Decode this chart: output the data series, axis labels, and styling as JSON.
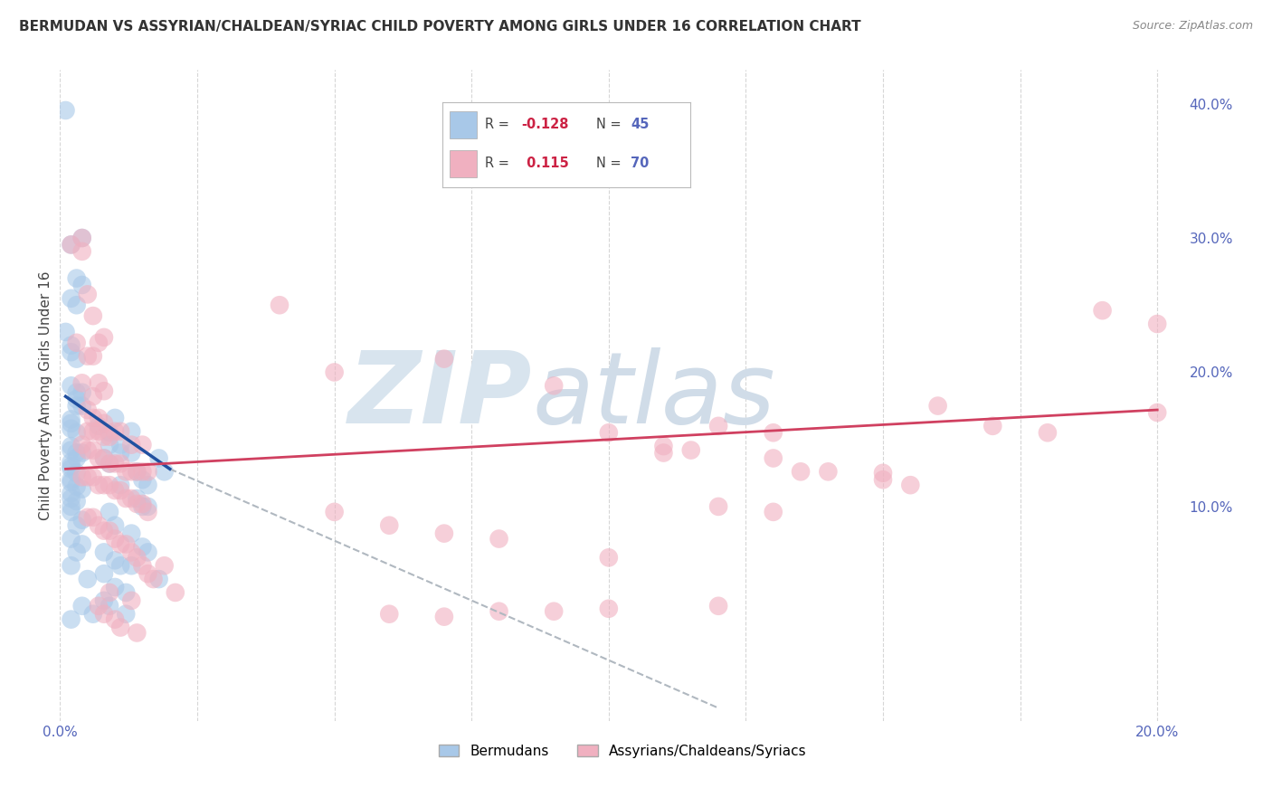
{
  "title": "BERMUDAN VS ASSYRIAN/CHALDEAN/SYRIAC CHILD POVERTY AMONG GIRLS UNDER 16 CORRELATION CHART",
  "source": "Source: ZipAtlas.com",
  "ylabel": "Child Poverty Among Girls Under 16",
  "xlim": [
    0.0,
    0.205
  ],
  "ylim": [
    -0.06,
    0.425
  ],
  "right_yticks": [
    0.1,
    0.2,
    0.3,
    0.4
  ],
  "right_yticklabels": [
    "10.0%",
    "20.0%",
    "30.0%",
    "40.0%"
  ],
  "xticks": [
    0.0,
    0.025,
    0.05,
    0.075,
    0.1,
    0.125,
    0.15,
    0.175,
    0.2
  ],
  "xticklabels": [
    "0.0%",
    "",
    "",
    "",
    "",
    "",
    "",
    "",
    "20.0%"
  ],
  "grid_color": "#cccccc",
  "background_color": "#ffffff",
  "blue_color": "#a8c8e8",
  "pink_color": "#f0b0c0",
  "blue_line_color": "#2050a0",
  "pink_line_color": "#d04060",
  "blue_dots": [
    [
      0.001,
      0.395
    ],
    [
      0.002,
      0.295
    ],
    [
      0.004,
      0.3
    ],
    [
      0.003,
      0.27
    ],
    [
      0.004,
      0.265
    ],
    [
      0.002,
      0.255
    ],
    [
      0.003,
      0.25
    ],
    [
      0.001,
      0.23
    ],
    [
      0.002,
      0.22
    ],
    [
      0.002,
      0.215
    ],
    [
      0.003,
      0.21
    ],
    [
      0.002,
      0.19
    ],
    [
      0.003,
      0.185
    ],
    [
      0.004,
      0.185
    ],
    [
      0.003,
      0.18
    ],
    [
      0.003,
      0.175
    ],
    [
      0.004,
      0.175
    ],
    [
      0.002,
      0.165
    ],
    [
      0.002,
      0.162
    ],
    [
      0.002,
      0.158
    ],
    [
      0.003,
      0.155
    ],
    [
      0.002,
      0.145
    ],
    [
      0.002,
      0.142
    ],
    [
      0.003,
      0.14
    ],
    [
      0.004,
      0.14
    ],
    [
      0.003,
      0.136
    ],
    [
      0.002,
      0.133
    ],
    [
      0.002,
      0.13
    ],
    [
      0.002,
      0.128
    ],
    [
      0.003,
      0.125
    ],
    [
      0.002,
      0.12
    ],
    [
      0.002,
      0.118
    ],
    [
      0.003,
      0.115
    ],
    [
      0.004,
      0.113
    ],
    [
      0.002,
      0.11
    ],
    [
      0.002,
      0.106
    ],
    [
      0.003,
      0.104
    ],
    [
      0.002,
      0.1
    ],
    [
      0.002,
      0.096
    ],
    [
      0.004,
      0.09
    ],
    [
      0.003,
      0.086
    ],
    [
      0.002,
      0.076
    ],
    [
      0.004,
      0.072
    ],
    [
      0.003,
      0.066
    ],
    [
      0.002,
      0.056
    ],
    [
      0.007,
      0.16
    ],
    [
      0.009,
      0.155
    ],
    [
      0.01,
      0.166
    ],
    [
      0.011,
      0.14
    ],
    [
      0.013,
      0.14
    ],
    [
      0.015,
      0.12
    ],
    [
      0.008,
      0.136
    ],
    [
      0.009,
      0.132
    ],
    [
      0.014,
      0.126
    ],
    [
      0.016,
      0.116
    ],
    [
      0.011,
      0.116
    ],
    [
      0.009,
      0.146
    ],
    [
      0.011,
      0.146
    ],
    [
      0.013,
      0.156
    ],
    [
      0.014,
      0.106
    ],
    [
      0.015,
      0.1
    ],
    [
      0.016,
      0.1
    ],
    [
      0.018,
      0.136
    ],
    [
      0.019,
      0.126
    ],
    [
      0.009,
      0.096
    ],
    [
      0.01,
      0.086
    ],
    [
      0.013,
      0.08
    ],
    [
      0.015,
      0.07
    ],
    [
      0.008,
      0.066
    ],
    [
      0.016,
      0.066
    ],
    [
      0.01,
      0.06
    ],
    [
      0.011,
      0.056
    ],
    [
      0.013,
      0.056
    ],
    [
      0.008,
      0.05
    ],
    [
      0.005,
      0.046
    ],
    [
      0.01,
      0.04
    ],
    [
      0.018,
      0.046
    ],
    [
      0.012,
      0.036
    ],
    [
      0.008,
      0.03
    ],
    [
      0.004,
      0.026
    ],
    [
      0.009,
      0.026
    ],
    [
      0.006,
      0.02
    ],
    [
      0.012,
      0.02
    ],
    [
      0.002,
      0.016
    ]
  ],
  "pink_dots": [
    [
      0.002,
      0.295
    ],
    [
      0.004,
      0.3
    ],
    [
      0.004,
      0.29
    ],
    [
      0.005,
      0.258
    ],
    [
      0.006,
      0.242
    ],
    [
      0.008,
      0.226
    ],
    [
      0.003,
      0.222
    ],
    [
      0.007,
      0.222
    ],
    [
      0.005,
      0.212
    ],
    [
      0.006,
      0.212
    ],
    [
      0.004,
      0.192
    ],
    [
      0.006,
      0.182
    ],
    [
      0.007,
      0.192
    ],
    [
      0.008,
      0.186
    ],
    [
      0.005,
      0.172
    ],
    [
      0.006,
      0.166
    ],
    [
      0.007,
      0.166
    ],
    [
      0.008,
      0.162
    ],
    [
      0.005,
      0.156
    ],
    [
      0.006,
      0.156
    ],
    [
      0.007,
      0.156
    ],
    [
      0.008,
      0.152
    ],
    [
      0.009,
      0.152
    ],
    [
      0.01,
      0.156
    ],
    [
      0.011,
      0.156
    ],
    [
      0.013,
      0.146
    ],
    [
      0.015,
      0.146
    ],
    [
      0.004,
      0.146
    ],
    [
      0.005,
      0.142
    ],
    [
      0.006,
      0.142
    ],
    [
      0.007,
      0.136
    ],
    [
      0.008,
      0.136
    ],
    [
      0.009,
      0.132
    ],
    [
      0.01,
      0.132
    ],
    [
      0.011,
      0.132
    ],
    [
      0.012,
      0.126
    ],
    [
      0.013,
      0.126
    ],
    [
      0.014,
      0.126
    ],
    [
      0.015,
      0.126
    ],
    [
      0.016,
      0.126
    ],
    [
      0.004,
      0.122
    ],
    [
      0.005,
      0.122
    ],
    [
      0.006,
      0.122
    ],
    [
      0.007,
      0.116
    ],
    [
      0.008,
      0.116
    ],
    [
      0.009,
      0.116
    ],
    [
      0.01,
      0.112
    ],
    [
      0.011,
      0.112
    ],
    [
      0.012,
      0.106
    ],
    [
      0.013,
      0.106
    ],
    [
      0.014,
      0.102
    ],
    [
      0.015,
      0.102
    ],
    [
      0.016,
      0.096
    ],
    [
      0.005,
      0.092
    ],
    [
      0.006,
      0.092
    ],
    [
      0.007,
      0.086
    ],
    [
      0.008,
      0.082
    ],
    [
      0.009,
      0.082
    ],
    [
      0.01,
      0.076
    ],
    [
      0.011,
      0.072
    ],
    [
      0.012,
      0.072
    ],
    [
      0.013,
      0.066
    ],
    [
      0.014,
      0.062
    ],
    [
      0.015,
      0.056
    ],
    [
      0.016,
      0.05
    ],
    [
      0.017,
      0.046
    ],
    [
      0.019,
      0.056
    ],
    [
      0.12,
      0.026
    ],
    [
      0.021,
      0.036
    ],
    [
      0.009,
      0.036
    ],
    [
      0.013,
      0.03
    ],
    [
      0.007,
      0.026
    ],
    [
      0.008,
      0.02
    ],
    [
      0.01,
      0.016
    ],
    [
      0.011,
      0.01
    ],
    [
      0.014,
      0.006
    ],
    [
      0.09,
      0.022
    ],
    [
      0.1,
      0.024
    ],
    [
      0.06,
      0.02
    ],
    [
      0.07,
      0.018
    ],
    [
      0.08,
      0.022
    ],
    [
      0.11,
      0.14
    ],
    [
      0.115,
      0.142
    ],
    [
      0.13,
      0.136
    ],
    [
      0.135,
      0.126
    ],
    [
      0.14,
      0.126
    ],
    [
      0.15,
      0.12
    ],
    [
      0.155,
      0.116
    ],
    [
      0.17,
      0.16
    ],
    [
      0.2,
      0.236
    ],
    [
      0.19,
      0.246
    ],
    [
      0.04,
      0.25
    ],
    [
      0.05,
      0.2
    ],
    [
      0.07,
      0.21
    ],
    [
      0.09,
      0.19
    ],
    [
      0.1,
      0.155
    ],
    [
      0.11,
      0.145
    ],
    [
      0.12,
      0.16
    ],
    [
      0.13,
      0.155
    ],
    [
      0.15,
      0.125
    ],
    [
      0.16,
      0.175
    ],
    [
      0.18,
      0.155
    ],
    [
      0.2,
      0.17
    ],
    [
      0.12,
      0.1
    ],
    [
      0.13,
      0.096
    ],
    [
      0.05,
      0.096
    ],
    [
      0.06,
      0.086
    ],
    [
      0.07,
      0.08
    ],
    [
      0.08,
      0.076
    ],
    [
      0.1,
      0.062
    ]
  ],
  "blue_line": {
    "x0": 0.001,
    "y0": 0.182,
    "x1": 0.02,
    "y1": 0.128
  },
  "pink_line": {
    "x0": 0.001,
    "y0": 0.128,
    "x1": 0.2,
    "y1": 0.172
  },
  "gray_dashed_line": {
    "x0": 0.02,
    "y0": 0.128,
    "x1": 0.12,
    "y1": -0.05
  },
  "watermark_zip": "ZIP",
  "watermark_atlas": "atlas",
  "watermark_color": "#e0e8f0"
}
